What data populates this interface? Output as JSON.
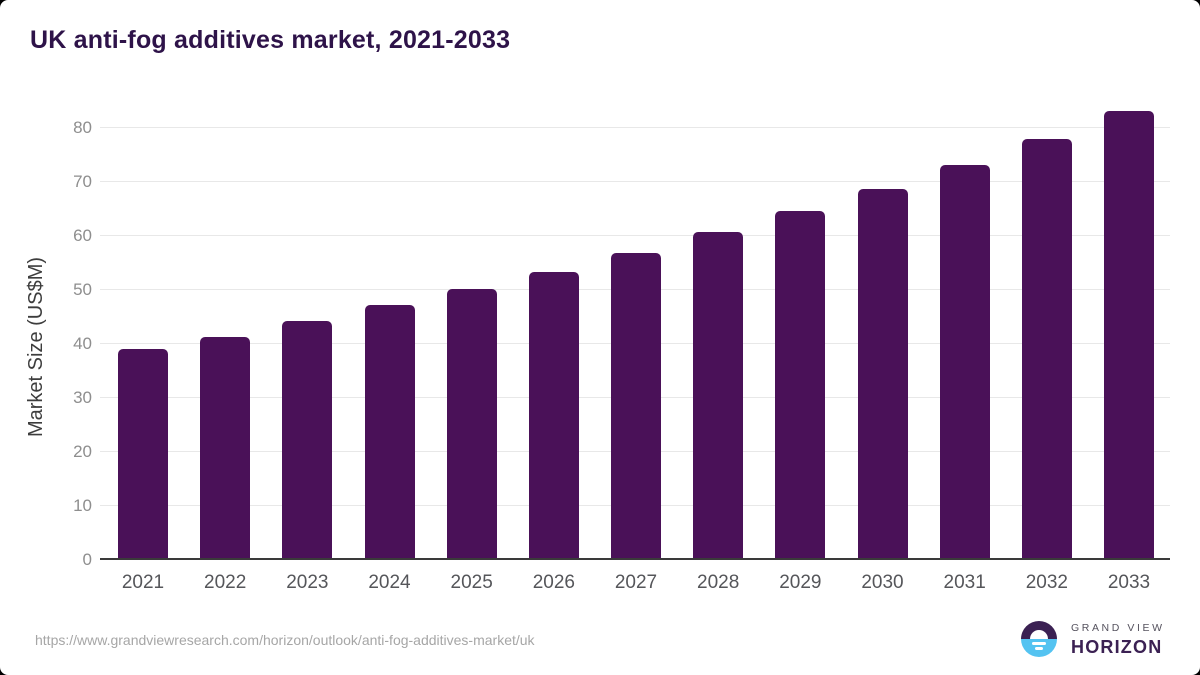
{
  "page": {
    "title": "UK anti-fog additives market, 2021-2033",
    "source_url": "https://www.grandviewresearch.com/horizon/outlook/anti-fog-additives-market/uk"
  },
  "chart_data": {
    "type": "bar",
    "title": "UK anti-fog additives market, 2021-2033",
    "categories": [
      "2021",
      "2022",
      "2023",
      "2024",
      "2025",
      "2026",
      "2027",
      "2028",
      "2029",
      "2030",
      "2031",
      "2032",
      "2033"
    ],
    "values": [
      38.8,
      41.1,
      44.0,
      47.0,
      50.0,
      53.2,
      56.6,
      60.5,
      64.4,
      68.5,
      72.9,
      77.8,
      82.9
    ],
    "xlabel": "",
    "ylabel": "Market Size (US$M)",
    "ylim": [
      0,
      80
    ],
    "yticks": [
      0,
      10,
      20,
      30,
      40,
      50,
      60,
      70,
      80
    ],
    "grid": true,
    "legend": "none",
    "bar_color": "#4a1158"
  },
  "colors": {
    "title": "#2e1349",
    "bar": "#4a1158",
    "gridline": "#e8e8e8",
    "axis_line": "#3a3a3a",
    "y_tick_label": "#8e8e8e",
    "x_tick_label": "#55565a",
    "source_url": "#a6a6a6",
    "logo_purple": "#3b2153",
    "logo_blue": "#54c3f1"
  },
  "logo": {
    "line1": "GRAND VIEW",
    "line2": "HORIZON"
  }
}
